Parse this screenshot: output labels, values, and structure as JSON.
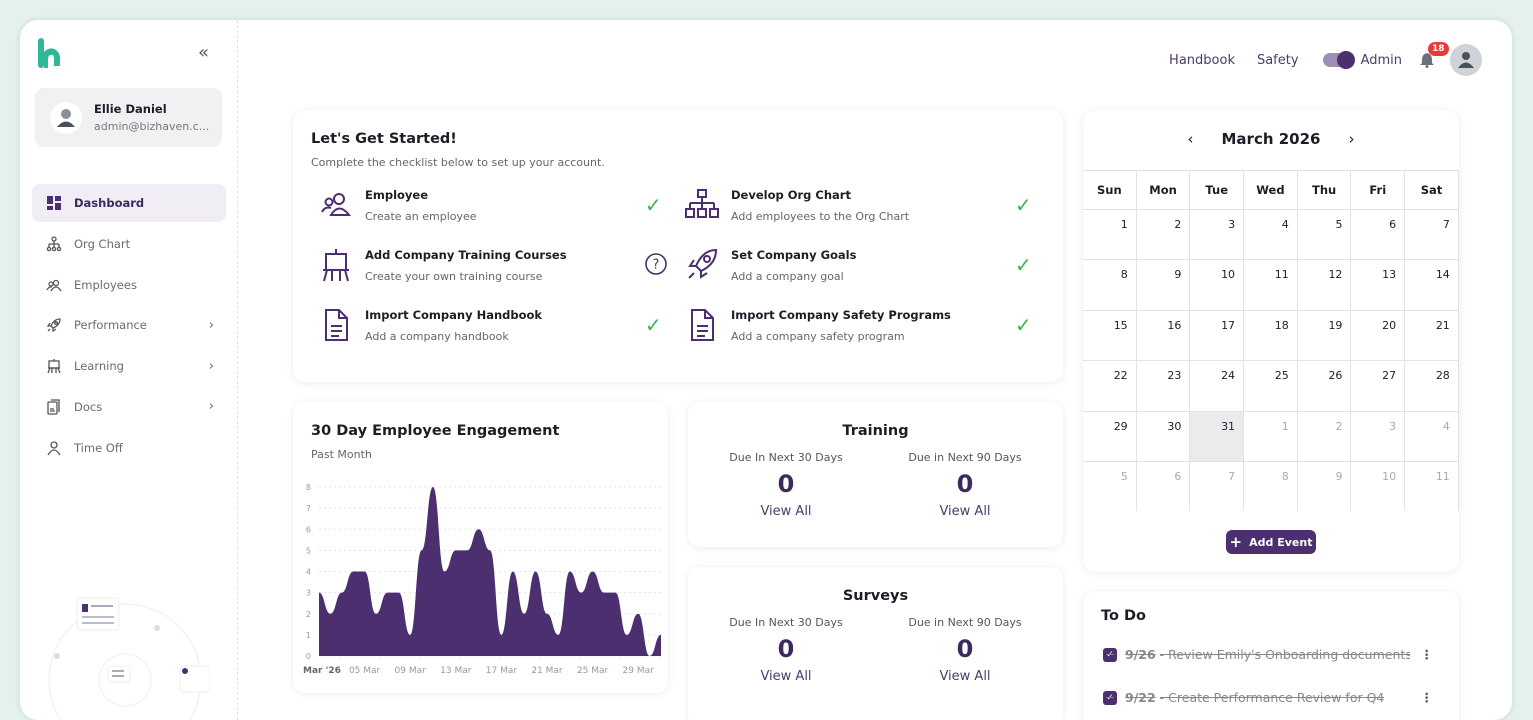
{
  "brand": {
    "logo": "bizhaven-logo",
    "accent": "#4b2f6e",
    "logo_color": "#2db89a"
  },
  "user": {
    "name": "Ellie Daniel",
    "email": "admin@bizhaven.c..."
  },
  "sidebar": {
    "items": [
      {
        "label": "Dashboard",
        "icon": "dashboard-icon",
        "active": true
      },
      {
        "label": "Org Chart",
        "icon": "org-chart-icon"
      },
      {
        "label": "Employees",
        "icon": "employees-icon"
      },
      {
        "label": "Performance",
        "icon": "rocket-icon",
        "chevron": true
      },
      {
        "label": "Learning",
        "icon": "easel-icon",
        "chevron": true
      },
      {
        "label": "Docs",
        "icon": "docs-icon",
        "chevron": true
      },
      {
        "label": "Time Off",
        "icon": "person-icon"
      }
    ]
  },
  "topnav": {
    "handbook": "Handbook",
    "safety": "Safety",
    "role": "Admin",
    "notifications": "18"
  },
  "checklist": {
    "title": "Let's Get Started!",
    "subtitle": "Complete the checklist below to set up your account.",
    "items": [
      {
        "title": "Employee",
        "desc": "Create an employee",
        "done": true
      },
      {
        "title": "Develop Org Chart",
        "desc": "Add employees to the Org Chart",
        "done": true
      },
      {
        "title": "Add Company Training Courses",
        "desc": "Create your own training course",
        "done": false
      },
      {
        "title": "Set Company Goals",
        "desc": "Add a company goal",
        "done": true
      },
      {
        "title": "Import Company Handbook",
        "desc": "Add a company handbook",
        "done": true
      },
      {
        "title": "Import Company Safety Programs",
        "desc": "Add a company safety program",
        "done": true
      }
    ]
  },
  "chart_data": {
    "type": "area",
    "title": "30 Day Employee Engagement",
    "subtitle": "Past Month",
    "x": [
      1,
      2,
      3,
      4,
      5,
      6,
      7,
      8,
      9,
      10,
      11,
      12,
      13,
      14,
      15,
      16,
      17,
      18,
      19,
      20,
      21,
      22,
      23,
      24,
      25,
      26,
      27,
      28,
      29,
      30,
      31
    ],
    "values": [
      3,
      2,
      3,
      4,
      4,
      2,
      3,
      3,
      1,
      5,
      8,
      4,
      5,
      5,
      6,
      5,
      1,
      4,
      2,
      4,
      2,
      1,
      4,
      3,
      4,
      3,
      3,
      1,
      2,
      0,
      1
    ],
    "xticks": [
      "Mar '26",
      "05 Mar",
      "09 Mar",
      "13 Mar",
      "17 Mar",
      "21 Mar",
      "25 Mar",
      "29 Mar"
    ],
    "yticks": [
      "0",
      "1",
      "2",
      "3",
      "4",
      "5",
      "6",
      "7",
      "8"
    ],
    "ylim": [
      0,
      8
    ],
    "grid": true,
    "color": "#4b2f6e"
  },
  "training": {
    "title": "Training",
    "c1": "Due In Next 30 Days",
    "c2": "Due in Next 90 Days",
    "v1": "0",
    "v2": "0",
    "link": "View All"
  },
  "surveys": {
    "title": "Surveys",
    "c1": "Due In Next 30 Days",
    "c2": "Due in Next 90 Days",
    "v1": "0",
    "v2": "0",
    "link": "View All"
  },
  "calendar": {
    "month": "March 2026",
    "days": [
      "Sun",
      "Mon",
      "Tue",
      "Wed",
      "Thu",
      "Fri",
      "Sat"
    ],
    "weeks": [
      [
        "1",
        "2",
        "3",
        "4",
        "5",
        "6",
        "7"
      ],
      [
        "8",
        "9",
        "10",
        "11",
        "12",
        "13",
        "14"
      ],
      [
        "15",
        "16",
        "17",
        "18",
        "19",
        "20",
        "21"
      ],
      [
        "22",
        "23",
        "24",
        "25",
        "26",
        "27",
        "28"
      ],
      [
        "29",
        "30",
        "31",
        "1",
        "2",
        "3",
        "4"
      ],
      [
        "5",
        "6",
        "7",
        "8",
        "9",
        "10",
        "11"
      ]
    ],
    "today": "31",
    "add": "Add Event"
  },
  "todo": {
    "title": "To Do",
    "items": [
      {
        "date": "9/26",
        "text": "- Review Emily's Onboarding documents"
      },
      {
        "date": "9/22",
        "text": "- Create Performance Review for Q4"
      }
    ]
  }
}
